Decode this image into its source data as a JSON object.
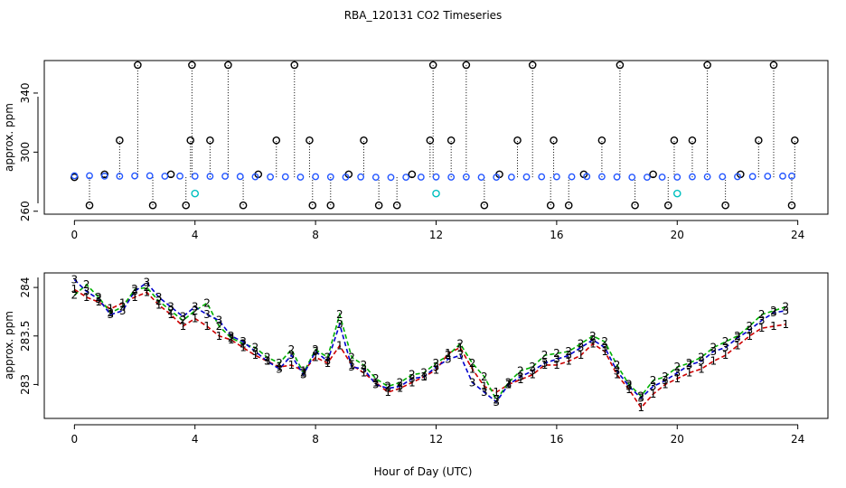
{
  "title": "RBA_120131  CO2 Timeseries",
  "xlabel": "Hour of Day (UTC)",
  "colors": {
    "background": "#ffffff",
    "axis": "#000000",
    "series1": "#cc0000",
    "series2": "#00b000",
    "series3": "#0000cc",
    "topBlack": "#000000",
    "topBlue": "#2255ff",
    "topCyan": "#00c0c0"
  },
  "chart_data": [
    {
      "type": "scatter",
      "title": "",
      "xlabel": "",
      "ylabel": "approx. ppm",
      "xlim": [
        -1,
        25
      ],
      "ylim": [
        258,
        362
      ],
      "xticks": [
        0,
        4,
        8,
        12,
        16,
        20,
        24
      ],
      "yticks": [
        260,
        300,
        340
      ],
      "series": [
        {
          "name": "",
          "role": "black-circles",
          "x": [
            0.0,
            0.5,
            1.0,
            1.5,
            2.1,
            2.6,
            3.2,
            3.7,
            3.85,
            3.9,
            4.5,
            5.1,
            5.6,
            6.1,
            6.7,
            7.3,
            7.8,
            7.9,
            8.5,
            9.1,
            9.6,
            10.1,
            10.7,
            11.2,
            11.8,
            11.9,
            12.5,
            13.0,
            13.6,
            14.1,
            14.7,
            15.2,
            15.8,
            15.9,
            16.4,
            16.9,
            17.5,
            18.1,
            18.6,
            19.2,
            19.7,
            19.9,
            20.5,
            21.0,
            21.6,
            22.1,
            22.7,
            23.2,
            23.8,
            23.9
          ],
          "values": [
            283,
            264,
            285,
            308,
            359,
            264,
            285,
            264,
            308,
            359,
            308,
            359,
            264,
            285,
            308,
            359,
            308,
            264,
            264,
            285,
            308,
            264,
            264,
            285,
            308,
            359,
            308,
            359,
            264,
            285,
            308,
            359,
            264,
            308,
            264,
            285,
            308,
            359,
            264,
            285,
            264,
            308,
            308,
            359,
            264,
            285,
            308,
            359,
            264,
            308
          ]
        },
        {
          "name": "",
          "role": "blue-circles",
          "x": [
            0.0,
            0.5,
            1.0,
            1.5,
            2.0,
            2.5,
            3.0,
            3.5,
            4.0,
            4.5,
            5.0,
            5.5,
            6.0,
            6.5,
            7.0,
            7.5,
            8.0,
            8.5,
            9.0,
            9.5,
            10.0,
            10.5,
            11.0,
            11.5,
            12.0,
            12.5,
            13.0,
            13.5,
            14.0,
            14.5,
            15.0,
            15.5,
            16.0,
            16.5,
            17.0,
            17.5,
            18.0,
            18.5,
            19.0,
            19.5,
            20.0,
            20.5,
            21.0,
            21.5,
            22.0,
            22.5,
            23.0,
            23.5,
            23.8
          ],
          "values": [
            284,
            284,
            283.8,
            283.7,
            283.9,
            284,
            283.7,
            283.8,
            283.7,
            283.6,
            283.7,
            283.5,
            283.3,
            283.2,
            283.3,
            283.1,
            283.4,
            283.2,
            283.1,
            283.2,
            283,
            282.9,
            283,
            283.1,
            283.2,
            283.1,
            283.2,
            283,
            283,
            283.1,
            283.2,
            283.3,
            283.3,
            283.3,
            283.5,
            283.4,
            283.2,
            283,
            283,
            283.1,
            283.1,
            283.3,
            283.3,
            283.4,
            283.4,
            283.5,
            283.7,
            283.8,
            283.8
          ]
        },
        {
          "name": "",
          "role": "cyan-circles",
          "x": [
            4.0,
            12.0,
            20.0
          ],
          "values": [
            272,
            272,
            272
          ]
        }
      ]
    },
    {
      "type": "line",
      "title": "",
      "xlabel": "Hour of Day (UTC)",
      "ylabel": "approx. ppm",
      "xlim": [
        -1,
        25
      ],
      "ylim": [
        282.65,
        284.15
      ],
      "xticks": [
        0,
        4,
        8,
        12,
        16,
        20,
        24
      ],
      "yticks": [
        283.0,
        283.5,
        284.0
      ],
      "series": [
        {
          "name": "",
          "marker": "1",
          "x": [
            0.0,
            0.4,
            0.8,
            1.2,
            1.6,
            2.0,
            2.4,
            2.8,
            3.2,
            3.6,
            4.0,
            4.4,
            4.8,
            5.2,
            5.6,
            6.0,
            6.4,
            6.8,
            7.2,
            7.6,
            8.0,
            8.4,
            8.8,
            9.2,
            9.6,
            10.0,
            10.4,
            10.8,
            11.2,
            11.6,
            12.0,
            12.4,
            12.8,
            13.2,
            13.6,
            14.0,
            14.4,
            14.8,
            15.2,
            15.6,
            16.0,
            16.4,
            16.8,
            17.2,
            17.6,
            18.0,
            18.4,
            18.8,
            19.2,
            19.6,
            20.0,
            20.4,
            20.8,
            21.2,
            21.6,
            22.0,
            22.4,
            22.8,
            23.2,
            23.6
          ],
          "values": [
            283.98,
            283.9,
            283.85,
            283.78,
            283.84,
            283.9,
            283.95,
            283.82,
            283.72,
            283.6,
            283.68,
            283.6,
            283.5,
            283.46,
            283.38,
            283.3,
            283.24,
            283.18,
            283.2,
            283.14,
            283.28,
            283.22,
            283.4,
            283.2,
            283.12,
            283.02,
            282.92,
            282.96,
            283.02,
            283.08,
            283.15,
            283.32,
            283.38,
            283.16,
            282.98,
            282.92,
            283.0,
            283.05,
            283.1,
            283.2,
            283.2,
            283.24,
            283.3,
            283.42,
            283.34,
            283.1,
            282.95,
            282.76,
            282.9,
            283.0,
            283.06,
            283.12,
            283.16,
            283.24,
            283.3,
            283.4,
            283.5,
            283.58,
            283.6,
            283.62
          ]
        },
        {
          "name": "",
          "marker": "2",
          "x": [
            0.0,
            0.4,
            0.8,
            1.2,
            1.6,
            2.0,
            2.4,
            2.8,
            3.2,
            3.6,
            4.0,
            4.4,
            4.8,
            5.2,
            5.6,
            6.0,
            6.4,
            6.8,
            7.2,
            7.6,
            8.0,
            8.4,
            8.8,
            9.2,
            9.6,
            10.0,
            10.4,
            10.8,
            11.2,
            11.6,
            12.0,
            12.4,
            12.8,
            13.2,
            13.6,
            14.0,
            14.4,
            14.8,
            15.2,
            15.6,
            16.0,
            16.4,
            16.8,
            17.2,
            17.6,
            18.0,
            18.4,
            18.8,
            19.2,
            19.6,
            20.0,
            20.4,
            20.8,
            21.2,
            21.6,
            22.0,
            22.4,
            22.8,
            23.2,
            23.6
          ],
          "values": [
            283.92,
            284.03,
            283.9,
            283.74,
            283.8,
            283.98,
            284.0,
            283.86,
            283.76,
            283.66,
            283.76,
            283.84,
            283.6,
            283.48,
            283.42,
            283.38,
            283.28,
            283.22,
            283.36,
            283.12,
            283.36,
            283.28,
            283.72,
            283.28,
            283.2,
            283.06,
            282.98,
            283.02,
            283.1,
            283.12,
            283.22,
            283.3,
            283.42,
            283.22,
            283.08,
            282.84,
            283.02,
            283.14,
            283.18,
            283.3,
            283.32,
            283.34,
            283.42,
            283.5,
            283.44,
            283.2,
            283.0,
            282.88,
            283.04,
            283.08,
            283.18,
            283.22,
            283.28,
            283.38,
            283.44,
            283.5,
            283.6,
            283.72,
            283.76,
            283.8
          ]
        },
        {
          "name": "",
          "marker": "3",
          "x": [
            0.0,
            0.4,
            0.8,
            1.2,
            1.6,
            2.0,
            2.4,
            2.8,
            3.2,
            3.6,
            4.0,
            4.4,
            4.8,
            5.2,
            5.6,
            6.0,
            6.4,
            6.8,
            7.2,
            7.6,
            8.0,
            8.4,
            8.8,
            9.2,
            9.6,
            10.0,
            10.4,
            10.8,
            11.2,
            11.6,
            12.0,
            12.4,
            12.8,
            13.2,
            13.6,
            14.0,
            14.4,
            14.8,
            15.2,
            15.6,
            16.0,
            16.4,
            16.8,
            17.2,
            17.6,
            18.0,
            18.4,
            18.8,
            19.2,
            19.6,
            20.0,
            20.4,
            20.8,
            21.2,
            21.6,
            22.0,
            22.4,
            22.8,
            23.2,
            23.6
          ],
          "values": [
            284.08,
            283.96,
            283.88,
            283.72,
            283.76,
            283.96,
            284.05,
            283.9,
            283.8,
            283.7,
            283.8,
            283.72,
            283.66,
            283.5,
            283.44,
            283.34,
            283.24,
            283.16,
            283.3,
            283.1,
            283.34,
            283.24,
            283.62,
            283.18,
            283.16,
            283.0,
            282.96,
            282.98,
            283.06,
            283.08,
            283.18,
            283.26,
            283.3,
            283.02,
            282.92,
            282.82,
            283.0,
            283.08,
            283.14,
            283.22,
            283.26,
            283.3,
            283.38,
            283.46,
            283.38,
            283.14,
            282.98,
            282.86,
            282.98,
            283.04,
            283.12,
            283.2,
            283.24,
            283.34,
            283.38,
            283.48,
            283.56,
            283.66,
            283.74,
            283.76
          ]
        }
      ]
    }
  ]
}
